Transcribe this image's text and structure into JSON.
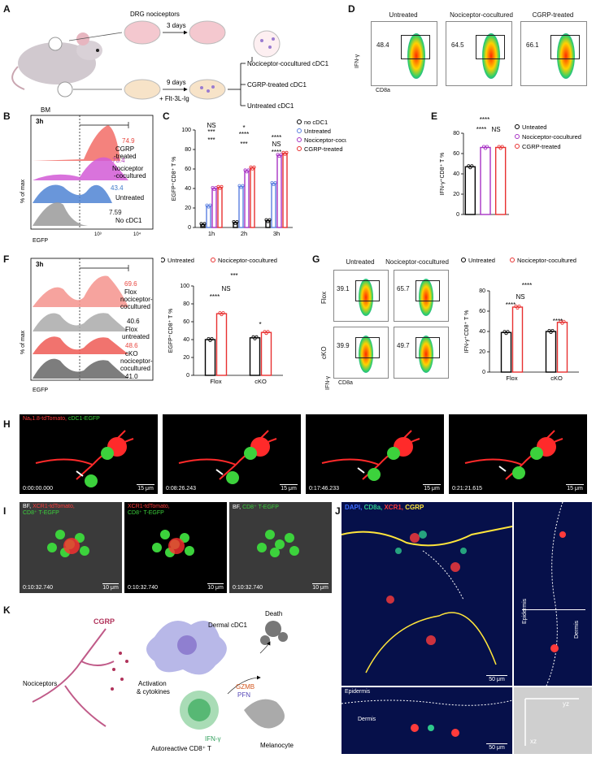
{
  "panels": {
    "A": {
      "label": "A",
      "dr_g": "DRG nociceptors",
      "three_days": "3 days",
      "bm": "BM",
      "nine_days": "9 days",
      "flt": "+ Flt-3L-Ig",
      "out1": "Nociceptor-cocultured cDC1",
      "out2": "CGRP-treated cDC1",
      "out3": "Untreated cDC1"
    },
    "B": {
      "label": "B",
      "time": "3h",
      "ylabel": "% of max",
      "xlabel": "EGFP",
      "rows": [
        {
          "name": "CGRP\n-treated",
          "line1": "CGRP",
          "line2": "-treated",
          "value": "74.9",
          "color": "#e8463f"
        },
        {
          "name": "Nociceptor\n-cocultured",
          "line1": "Nociceptor",
          "line2": "-cocultured",
          "value": "73.4",
          "color": "#b23db5"
        },
        {
          "name": "Untreated",
          "line1": "Untreated",
          "line2": "",
          "value": "43.4",
          "color": "#3c78c8"
        },
        {
          "name": "No cDC1",
          "line1": "No cDC1",
          "line2": "",
          "value": "7.59",
          "color": "#222222"
        }
      ],
      "ticks": [
        "10³",
        "10⁴"
      ]
    },
    "C": {
      "label": "C",
      "ylabel": "EGFP⁺CD8⁺ T %",
      "legend": [
        "no cDC1",
        "Untreated",
        "Nociceptor-cocultured",
        "CGRP-treated"
      ],
      "sig": [
        "***",
        "***",
        "NS",
        "***",
        "****",
        "*",
        "****",
        "NS",
        "****"
      ]
    },
    "D": {
      "label": "D",
      "titles": [
        "Untreated",
        "Nociceptor-cocultured",
        "CGRP-treated"
      ],
      "values": [
        "48.4",
        "64.5",
        "66.1"
      ],
      "ylabel": "IFN-γ",
      "xlabel": "CD8a"
    },
    "E": {
      "label": "E",
      "ylabel": "IFN-γ⁺CD8⁺ T %",
      "legend": [
        "Unteated",
        "Nociceptor-cocultured",
        "CGRP-treated"
      ],
      "sig": [
        "****",
        "****",
        "NS"
      ]
    },
    "F": {
      "label": "F",
      "time": "3h",
      "ylabel": "% of max",
      "xlabel": "EGFP",
      "rows": [
        {
          "line1": "Flox",
          "line2": "nociceptor-",
          "line3": "cocultured",
          "value": "69.6",
          "color": "#e8463f"
        },
        {
          "line1": "Flox",
          "line2": "untreated",
          "line3": "",
          "value": "40.6",
          "color": "#222222"
        },
        {
          "line1": "cKO",
          "line2": "nociceptor-",
          "line3": "cocultured",
          "value": "48.6",
          "color": "#e8463f"
        },
        {
          "line1": "cKO",
          "line2": "untreated",
          "line3": "",
          "value": "41.0",
          "color": "#222222"
        }
      ],
      "legend": [
        "Untreated",
        "Nociceptor-cocultured"
      ],
      "bar_ylabel": "EGFP⁺CD8⁺ T %",
      "sig": [
        "***",
        "NS",
        "****",
        "*"
      ],
      "groups": [
        "Flox",
        "cKO"
      ]
    },
    "G": {
      "label": "G",
      "titles": [
        "Untreated",
        "Nociceptor-cocultured"
      ],
      "rows": [
        "Flox",
        "cKO"
      ],
      "values": [
        "39.1",
        "65.7",
        "39.9",
        "49.7"
      ],
      "ylabel": "IFN-γ",
      "xlabel": "CD8a",
      "legend": [
        "Untreated",
        "Nociceptor-cocultured"
      ],
      "bar_ylabel": "IFN-γ⁺CD8⁺ T %",
      "sig": [
        "****",
        "NS",
        "****",
        "****"
      ],
      "groups": [
        "Flox",
        "cKO"
      ]
    },
    "H": {
      "label": "H",
      "legend_red": "Naᵥ1.8-tdTomato,",
      "legend_green": " cDC1-EGFP",
      "times": [
        "0:00:00.000",
        "0:08:26.243",
        "0:17:46.233",
        "0:21:21.615"
      ],
      "scale": "15 μm"
    },
    "I": {
      "label": "I",
      "titles": [
        {
          "a": "BF, ",
          "b": "XCR1-tdTomato,",
          "c": "CD8⁺ T-EGFP"
        },
        {
          "a": "",
          "b": "XCR1-tdTomato,",
          "c": "CD8⁺ T-EGFP"
        },
        {
          "a": "BF, ",
          "b": "",
          "c": "CD8⁺ T-EGFP"
        }
      ],
      "time": "0:10:32.740",
      "scale": "10 μm"
    },
    "J": {
      "label": "J",
      "legend": [
        {
          "text": "DAPI, ",
          "color": "#3d6cff"
        },
        {
          "text": "CD8a, ",
          "color": "#2ec88c"
        },
        {
          "text": "XCR1, ",
          "color": "#ff3b3b"
        },
        {
          "text": "CGRP",
          "color": "#ffe53b"
        }
      ],
      "scale": "50 μm",
      "epidermis": "Epidermis",
      "dermis": "Dermis",
      "yz": "yz",
      "xz": "xz"
    },
    "K": {
      "label": "K",
      "cgrp": "CGRP",
      "dermal": "Dermal cDC1",
      "death": "Death",
      "nociceptors": "Nociceptors",
      "activation": "Activation",
      "cytokines": "& cytokines",
      "gzmb": "GZMB",
      "pfn": "PFN",
      "ifng": "IFN-γ",
      "cd8": "Autoreactive CD8⁺ T",
      "melanocyte": "Melanocyte"
    }
  },
  "chart_data": [
    {
      "type": "bar",
      "id": "C",
      "categories": [
        "1h",
        "2h",
        "3h"
      ],
      "ylim": [
        0,
        100
      ],
      "yticks": [
        0,
        20,
        40,
        60,
        80,
        100
      ],
      "ylabel": "EGFP⁺CD8⁺ T %",
      "series": [
        {
          "name": "no cDC1",
          "color": "#000000",
          "values": [
            3,
            5,
            7
          ]
        },
        {
          "name": "Untreated",
          "color": "#5a7fe0",
          "values": [
            22,
            42,
            45
          ]
        },
        {
          "name": "Nociceptor-cocultured",
          "color": "#a733c4",
          "values": [
            40,
            58,
            74
          ]
        },
        {
          "name": "CGRP-treated",
          "color": "#e83030",
          "values": [
            41,
            61,
            76
          ]
        }
      ]
    },
    {
      "type": "bar",
      "id": "E",
      "categories": [
        "Unteated",
        "Nociceptor-cocultured",
        "CGRP-treated"
      ],
      "ylim": [
        0,
        80
      ],
      "yticks": [
        0,
        20,
        40,
        60,
        80
      ],
      "ylabel": "IFN-γ⁺CD8⁺ T %",
      "values": [
        47,
        66,
        66
      ],
      "colors": [
        "#000000",
        "#a733c4",
        "#e83030"
      ]
    },
    {
      "type": "bar",
      "id": "F",
      "categories": [
        "Flox",
        "cKO"
      ],
      "ylim": [
        0,
        100
      ],
      "yticks": [
        0,
        20,
        40,
        60,
        80,
        100
      ],
      "ylabel": "EGFP⁺CD8⁺ T %",
      "series": [
        {
          "name": "Untreated",
          "color": "#000000",
          "values": [
            40,
            42
          ]
        },
        {
          "name": "Nociceptor-cocultured",
          "color": "#e83030",
          "values": [
            69,
            48
          ]
        }
      ]
    },
    {
      "type": "bar",
      "id": "G",
      "categories": [
        "Flox",
        "cKO"
      ],
      "ylim": [
        0,
        80
      ],
      "yticks": [
        0,
        20,
        40,
        60,
        80
      ],
      "ylabel": "IFN-γ⁺CD8⁺ T %",
      "series": [
        {
          "name": "Untreated",
          "color": "#000000",
          "values": [
            39,
            40
          ]
        },
        {
          "name": "Nociceptor-cocultured",
          "color": "#e83030",
          "values": [
            64,
            49
          ]
        }
      ]
    }
  ]
}
